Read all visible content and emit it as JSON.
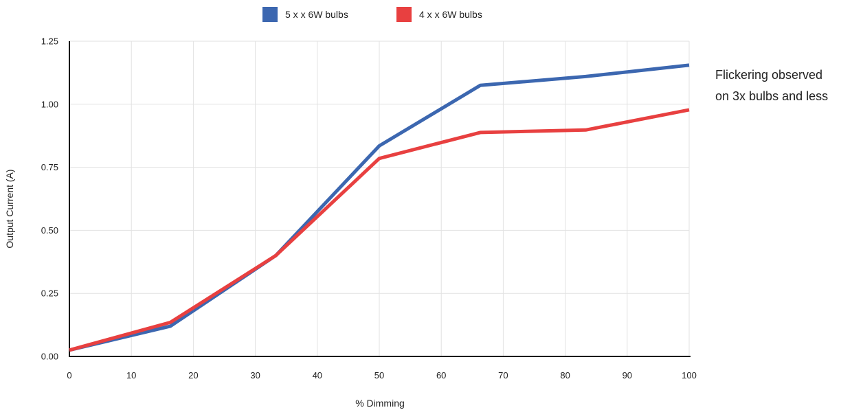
{
  "chart_data": {
    "type": "line",
    "title": "",
    "xlabel": "% Dimming",
    "ylabel": "Output Current (A)",
    "xlim": [
      0,
      100
    ],
    "ylim": [
      0,
      1.25
    ],
    "x_ticks": [
      "0",
      "10",
      "20",
      "30",
      "40",
      "50",
      "60",
      "70",
      "80",
      "90",
      "100"
    ],
    "y_ticks": [
      "0.00",
      "0.25",
      "0.50",
      "0.75",
      "1.00",
      "1.25"
    ],
    "grid": true,
    "legend_position": "top",
    "series": [
      {
        "name": "5 x x 6W bulbs",
        "color": "#3c67b0",
        "x": [
          0,
          16.3,
          33.3,
          50,
          66.3,
          83.3,
          100
        ],
        "y": [
          0.025,
          0.12,
          0.4,
          0.835,
          1.075,
          1.11,
          1.155
        ]
      },
      {
        "name": "4 x x 6W bulbs",
        "color": "#e84040",
        "x": [
          0,
          16.3,
          33.3,
          50,
          66.3,
          83.3,
          100
        ],
        "y": [
          0.025,
          0.135,
          0.4,
          0.785,
          0.888,
          0.898,
          0.978
        ]
      }
    ],
    "annotation": {
      "lines": [
        "Flickering observed",
        "on 3x bulbs and less"
      ]
    }
  }
}
